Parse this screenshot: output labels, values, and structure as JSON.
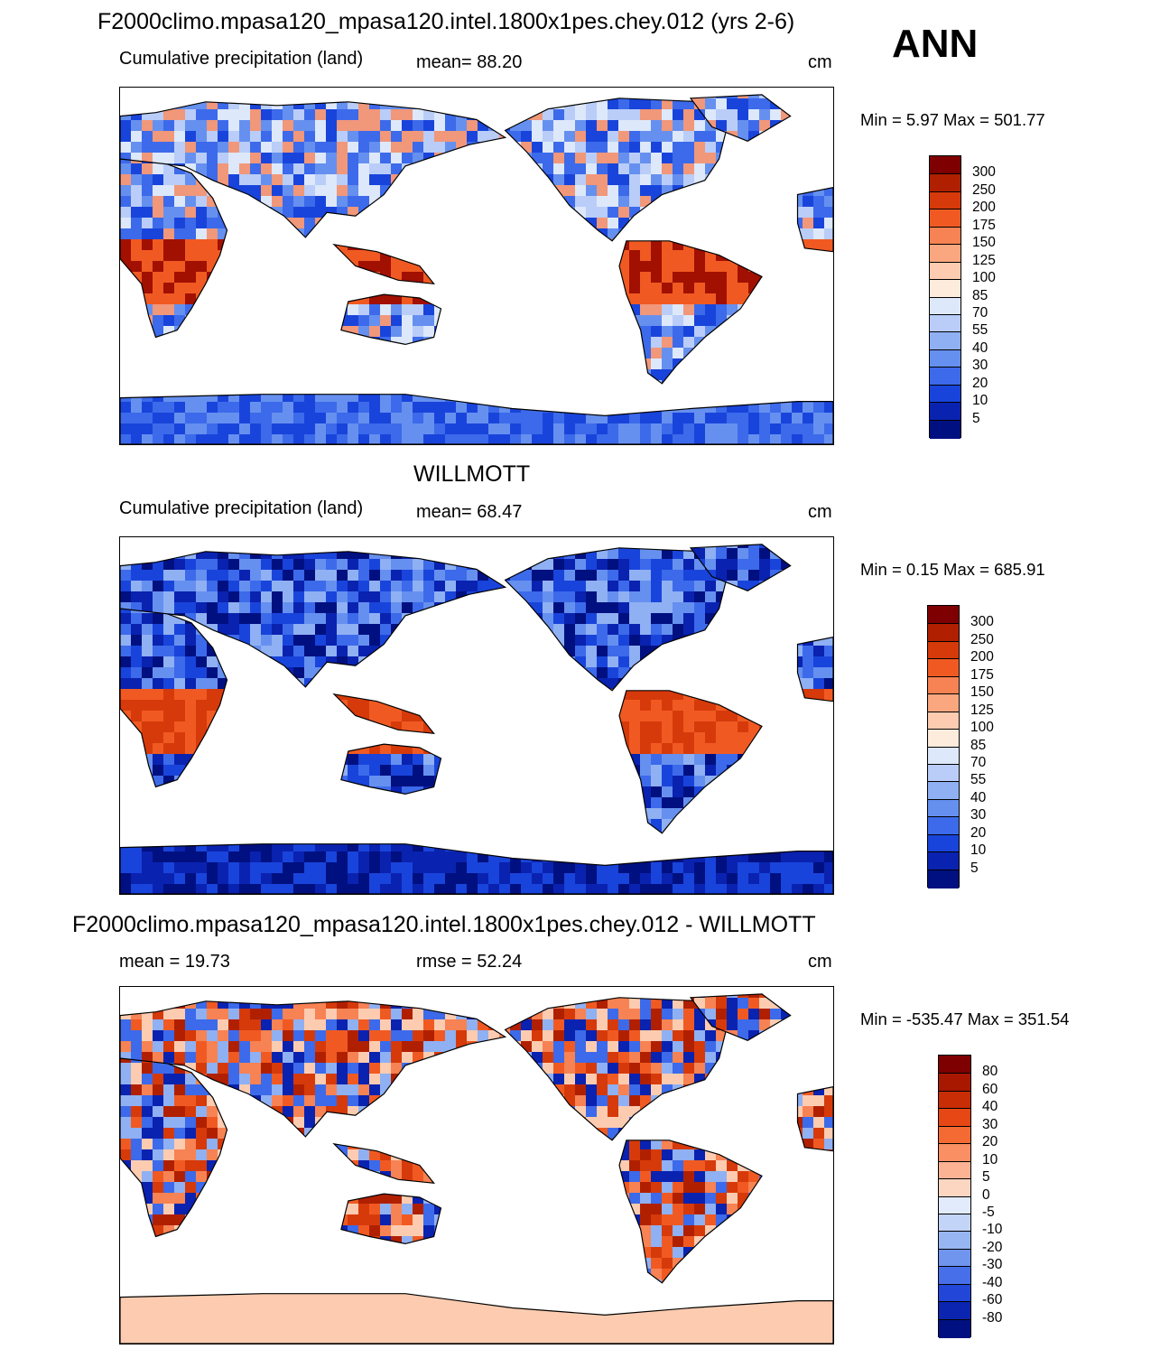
{
  "header": {
    "season": "ANN"
  },
  "panels": [
    {
      "id": "model",
      "title": "F2000climo.mpasa120_mpasa120.intel.1800x1pes.chey.012 (yrs 2-6)",
      "left_label": "Cumulative precipitation (land)",
      "stat_label": "mean=  88.20",
      "units": "cm",
      "minmax": "Min =   5.97 Max = 501.77",
      "colorbar": {
        "labels": [
          "300",
          "250",
          "200",
          "175",
          "150",
          "125",
          "100",
          "85",
          "70",
          "55",
          "40",
          "30",
          "20",
          "10",
          "5"
        ],
        "colors": [
          "#7f0000",
          "#b02000",
          "#d63a0a",
          "#f05a22",
          "#f78253",
          "#faa77f",
          "#fdccb0",
          "#fdebdc",
          "#dde8fb",
          "#b9cdf8",
          "#8fb0f3",
          "#6690ef",
          "#3c6aea",
          "#1944db",
          "#0a22b0",
          "#001080"
        ]
      },
      "map": {
        "type": "model",
        "colors": [
          "#f1977a",
          "#dde8fb",
          "#b9cdf8",
          "#6690ef",
          "#3c6aea",
          "#1944db",
          "#f05a22",
          "#a11000"
        ]
      }
    },
    {
      "id": "obs",
      "title": "WILLMOTT",
      "left_label": "Cumulative precipitation (land)",
      "stat_label": "mean=  68.47",
      "units": "cm",
      "minmax": "Min =   0.15 Max = 685.91",
      "colorbar": {
        "labels": [
          "300",
          "250",
          "200",
          "175",
          "150",
          "125",
          "100",
          "85",
          "70",
          "55",
          "40",
          "30",
          "20",
          "10",
          "5"
        ],
        "colors": [
          "#7f0000",
          "#b02000",
          "#d63a0a",
          "#f05a22",
          "#f78253",
          "#faa77f",
          "#fdccb0",
          "#fdebdc",
          "#dde8fb",
          "#b9cdf8",
          "#8fb0f3",
          "#6690ef",
          "#3c6aea",
          "#1944db",
          "#0a22b0",
          "#001080"
        ]
      },
      "map": {
        "type": "obs",
        "colors": [
          "#8fb0f3",
          "#6690ef",
          "#3c6aea",
          "#1944db",
          "#0a22b0",
          "#001080",
          "#f05a22",
          "#d63a0a"
        ]
      }
    },
    {
      "id": "diff",
      "title": "F2000climo.mpasa120_mpasa120.intel.1800x1pes.chey.012 - WILLMOTT",
      "left_label": "mean =  19.73",
      "stat_label": "rmse =  52.24",
      "units": "cm",
      "minmax": "Min = -535.47 Max = 351.54",
      "colorbar": {
        "labels": [
          "80",
          "60",
          "40",
          "30",
          "20",
          "10",
          "5",
          "0",
          "-5",
          "-10",
          "-20",
          "-30",
          "-40",
          "-60",
          "-80"
        ],
        "colors": [
          "#7f0000",
          "#a81800",
          "#c92d05",
          "#e64715",
          "#f56a33",
          "#f98f63",
          "#fbb394",
          "#fdd6c2",
          "#e2ebfc",
          "#c2d4f8",
          "#97b5f3",
          "#6f95ef",
          "#476fea",
          "#2247d8",
          "#0c25b0",
          "#001080"
        ]
      },
      "map": {
        "type": "diff",
        "colors": [
          "#f05a22",
          "#d63a0a",
          "#b02000",
          "#f78253",
          "#3c6aea",
          "#0a22b0",
          "#fdccb0",
          "#8fb0f3"
        ]
      }
    }
  ]
}
